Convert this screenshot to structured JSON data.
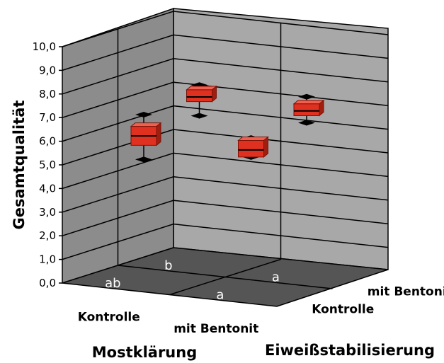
{
  "chart_data": {
    "type": "3d-boxplot",
    "ylabel": "Gesamtqualität",
    "x1label": "Mostklärung",
    "x2label": "Eiweißstabilisierung",
    "x1_categories": [
      "Kontrolle",
      "mit Bentonit"
    ],
    "x2_categories": [
      "Kontrolle",
      "mit Bentonit"
    ],
    "ylim": [
      0,
      10
    ],
    "yticks": [
      "0,0",
      "1,0",
      "2,0",
      "3,0",
      "4,0",
      "5,0",
      "6,0",
      "7,0",
      "8,0",
      "9,0",
      "10,0"
    ],
    "grid": true,
    "box_color": "#e03020",
    "floor_color": "#555555",
    "wall_color": "#a8a8a8",
    "boxes": [
      {
        "mostklaerung": "Kontrolle",
        "eiweissstabilisierung": "Kontrolle",
        "min": 5.1,
        "q1": 5.7,
        "median": 6.1,
        "q3": 6.5,
        "max": 7.0,
        "letter": "ab"
      },
      {
        "mostklaerung": "Kontrolle",
        "eiweissstabilisierung": "mit Bentonit",
        "min": 6.2,
        "q1": 6.8,
        "median": 7.0,
        "q3": 7.3,
        "max": 7.5,
        "letter": "b"
      },
      {
        "mostklaerung": "mit Bentonit",
        "eiweissstabilisierung": "Kontrolle",
        "min": 5.7,
        "q1": 5.7,
        "median": 6.0,
        "q3": 6.4,
        "max": 6.5,
        "letter": "a"
      },
      {
        "mostklaerung": "mit Bentonit",
        "eiweissstabilisierung": "mit Bentonit",
        "min": 6.4,
        "q1": 6.7,
        "median": 6.9,
        "q3": 7.2,
        "max": 7.5,
        "letter": "a"
      }
    ]
  }
}
